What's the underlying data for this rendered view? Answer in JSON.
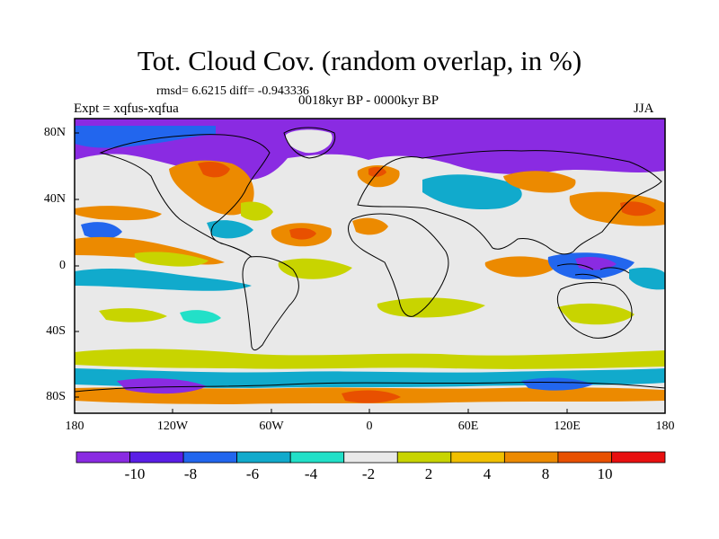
{
  "title": "Tot. Cloud Cov. (random overlap, in %)",
  "stats": "rmsd= 6.6215 diff= -0.943336",
  "period": "0018kyr BP - 0000kyr BP",
  "experiment": "Expt = xqfus-xqfua",
  "season": "JJA",
  "lat_labels": [
    "80N",
    "40N",
    "0",
    "40S",
    "80S"
  ],
  "lon_labels": [
    "180",
    "120W",
    "60W",
    "0",
    "60E",
    "120E",
    "180"
  ],
  "colorbar": {
    "labels": [
      "-10",
      "-8",
      "-6",
      "-4",
      "-2",
      "2",
      "4",
      "8",
      "10"
    ],
    "colors": [
      "#8a2be2",
      "#5a1ee6",
      "#2266ee",
      "#11aacc",
      "#22e0c8",
      "#e9e9e9",
      "#c8d400",
      "#f0c000",
      "#ec8a00",
      "#e85000",
      "#e81010"
    ]
  },
  "map_colors": {
    "neutral": "#e9e9e9",
    "violet": "#8a2be2",
    "blue": "#2266ee",
    "cyan": "#11aacc",
    "teal": "#22e0c8",
    "olive": "#c8d400",
    "orange": "#ec8a00",
    "red": "#e85000",
    "coast": "#000000"
  }
}
